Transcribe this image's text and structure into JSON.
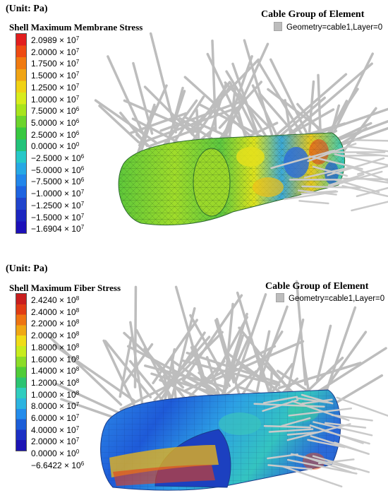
{
  "top": {
    "unit": "(Unit: Pa)",
    "legend_title": "Shell Maximum Membrane Stress",
    "ticks": [
      {
        "mant": "2.0989 × 10",
        "exp": "7"
      },
      {
        "mant": "2.0000 × 10",
        "exp": "7"
      },
      {
        "mant": "1.7500 × 10",
        "exp": "7"
      },
      {
        "mant": "1.5000 × 10",
        "exp": "7"
      },
      {
        "mant": "1.2500 × 10",
        "exp": "7"
      },
      {
        "mant": "1.0000 × 10",
        "exp": "7"
      },
      {
        "mant": "7.5000 × 10",
        "exp": "6"
      },
      {
        "mant": "5.0000 × 10",
        "exp": "6"
      },
      {
        "mant": "2.5000 × 10",
        "exp": "6"
      },
      {
        "mant": "0.0000 × 10",
        "exp": "0"
      },
      {
        "mant": "−2.5000 × 10",
        "exp": "6"
      },
      {
        "mant": "−5.0000 × 10",
        "exp": "6"
      },
      {
        "mant": "−7.5000 × 10",
        "exp": "6"
      },
      {
        "mant": "−1.0000 × 10",
        "exp": "7"
      },
      {
        "mant": "−1.2500 × 10",
        "exp": "7"
      },
      {
        "mant": "−1.5000 × 10",
        "exp": "7"
      },
      {
        "mant": "−1.6904 × 10",
        "exp": "7"
      }
    ],
    "colors": [
      "#e21e1e",
      "#ee4a12",
      "#f07a10",
      "#f0a414",
      "#f0d214",
      "#d8ec1c",
      "#a8e41c",
      "#6cd42c",
      "#38c840",
      "#22c27a",
      "#26c8c8",
      "#26a8e4",
      "#2286ea",
      "#1e64e0",
      "#2044cc",
      "#1c26c0",
      "#1c10b8"
    ],
    "cable_title": "Cable Group of Element",
    "cable_entry": "Geometry=cable1,Layer=0"
  },
  "bottom": {
    "unit": "(Unit: Pa)",
    "legend_title": "Shell Maximum Fiber Stress",
    "ticks": [
      {
        "mant": "2.4240 × 10",
        "exp": "8"
      },
      {
        "mant": "2.4000 × 10",
        "exp": "8"
      },
      {
        "mant": "2.2000 × 10",
        "exp": "8"
      },
      {
        "mant": "2.0000 × 10",
        "exp": "8"
      },
      {
        "mant": "1.8000 × 10",
        "exp": "8"
      },
      {
        "mant": "1.6000 × 10",
        "exp": "8"
      },
      {
        "mant": "1.4000 × 10",
        "exp": "8"
      },
      {
        "mant": "1.2000 × 10",
        "exp": "8"
      },
      {
        "mant": "1.0000 × 10",
        "exp": "8"
      },
      {
        "mant": "8.0000 × 10",
        "exp": "7"
      },
      {
        "mant": "6.0000 × 10",
        "exp": "7"
      },
      {
        "mant": "4.0000 × 10",
        "exp": "7"
      },
      {
        "mant": "2.0000 × 10",
        "exp": "7"
      },
      {
        "mant": "0.0000 × 10",
        "exp": "0"
      },
      {
        "mant": "−6.6422 × 10",
        "exp": "6"
      }
    ],
    "colors": [
      "#c81e1e",
      "#e03c14",
      "#ee7412",
      "#f0a814",
      "#f0dc18",
      "#c8ec1e",
      "#8cdc28",
      "#50cc38",
      "#2cc472",
      "#30cdbf",
      "#2cb4e0",
      "#248ceb",
      "#1c5ed8",
      "#1c30c4",
      "#1c14b4"
    ],
    "cable_title": "Cable Group of Element",
    "cable_entry": "Geometry=cable1,Layer=0"
  }
}
